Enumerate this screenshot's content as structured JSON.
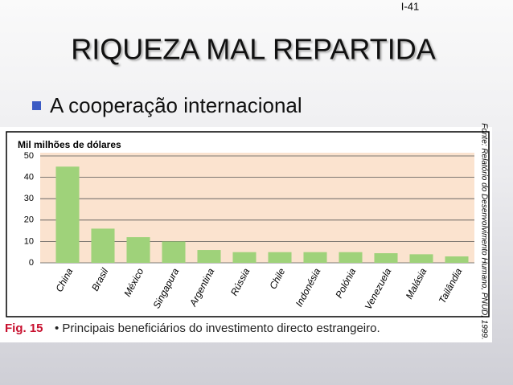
{
  "slide": {
    "number": "I-41",
    "title": "RIQUEZA MAL REPARTIDA",
    "bullet": "A cooperação internacional",
    "caption_label": "Fig. 15",
    "caption_text": "• Principais beneficiários do investimento directo estrangeiro.",
    "source": "Fonte: Relatório do Desenvolvimento Humano, PNUD, 1999."
  },
  "chart_data": {
    "type": "bar",
    "ylabel": "Mil milhões de dólares",
    "categories": [
      "China",
      "Brasil",
      "México",
      "Singapura",
      "Argentina",
      "Rússia",
      "Chile",
      "Indonésia",
      "Polónia",
      "Venezuela",
      "Malásia",
      "Tailândia"
    ],
    "values": [
      45,
      16,
      12,
      10,
      6,
      5,
      5,
      5,
      5,
      4.5,
      4,
      3
    ],
    "color": "#9fd27a",
    "ylim": [
      0,
      50
    ],
    "yticks": [
      0,
      10,
      20,
      30,
      40,
      50
    ],
    "grid": true
  }
}
